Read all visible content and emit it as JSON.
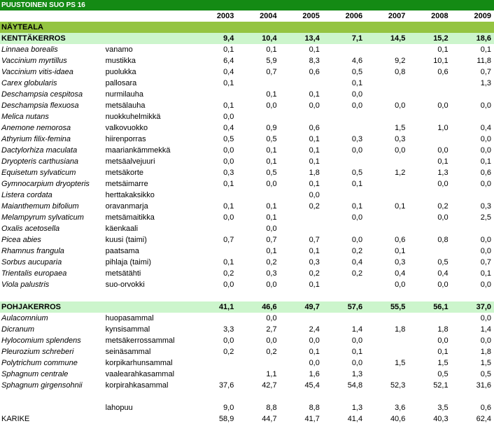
{
  "title": "PUUSTOINEN SUO PS 16",
  "years": [
    "2003",
    "2004",
    "2005",
    "2006",
    "2007",
    "2008",
    "2009"
  ],
  "area_label": "NÄYTEALA",
  "field_layer": {
    "name": "KENTTÄKERROS",
    "totals": [
      "9,4",
      "10,4",
      "13,4",
      "7,1",
      "14,5",
      "15,2",
      "18,6"
    ],
    "rows": [
      {
        "latin": "Linnaea borealis",
        "common": "vanamo",
        "values": [
          "0,1",
          "0,1",
          "0,1",
          "",
          "",
          "0,1",
          "0,1"
        ]
      },
      {
        "latin": "Vaccinium myrtillus",
        "common": "mustikka",
        "values": [
          "6,4",
          "5,9",
          "8,3",
          "4,6",
          "9,2",
          "10,1",
          "11,8"
        ]
      },
      {
        "latin": "Vaccinium vitis-idaea",
        "common": "puolukka",
        "values": [
          "0,4",
          "0,7",
          "0,6",
          "0,5",
          "0,8",
          "0,6",
          "0,7"
        ]
      },
      {
        "latin": "Carex globularis",
        "common": "pallosara",
        "values": [
          "0,1",
          "",
          "",
          "0,1",
          "",
          "",
          "1,3"
        ]
      },
      {
        "latin": "Deschampsia cespitosa",
        "common": "nurmilauha",
        "values": [
          "",
          "0,1",
          "0,1",
          "0,0",
          "",
          "",
          ""
        ]
      },
      {
        "latin": "Deschampsia flexuosa",
        "common": "metsälauha",
        "values": [
          "0,1",
          "0,0",
          "0,0",
          "0,0",
          "0,0",
          "0,0",
          "0,0"
        ]
      },
      {
        "latin": "Melica nutans",
        "common": "nuokkuhelmikkä",
        "values": [
          "0,0",
          "",
          "",
          "",
          "",
          "",
          ""
        ]
      },
      {
        "latin": "Anemone nemorosa",
        "common": "valkovuokko",
        "values": [
          "0,4",
          "0,9",
          "0,6",
          "",
          "1,5",
          "1,0",
          "0,4"
        ]
      },
      {
        "latin": "Athyrium filix-femina",
        "common": "hiirenporras",
        "values": [
          "0,5",
          "0,5",
          "0,1",
          "0,3",
          "0,3",
          "",
          "0,0"
        ]
      },
      {
        "latin": "Dactylorhiza maculata",
        "common": "maariankämmekkä",
        "values": [
          "0,0",
          "0,1",
          "0,1",
          "0,0",
          "0,0",
          "0,0",
          "0,0"
        ]
      },
      {
        "latin": "Dryopteris carthusiana",
        "common": "metsäalvejuuri",
        "values": [
          "0,0",
          "0,1",
          "0,1",
          "",
          "",
          "0,1",
          "0,1"
        ]
      },
      {
        "latin": "Equisetum sylvaticum",
        "common": "metsäkorte",
        "values": [
          "0,3",
          "0,5",
          "1,8",
          "0,5",
          "1,2",
          "1,3",
          "0,6"
        ]
      },
      {
        "latin": "Gymnocarpium dryopteris",
        "common": "metsäimarre",
        "values": [
          "0,1",
          "0,0",
          "0,1",
          "0,1",
          "",
          "0,0",
          "0,0"
        ]
      },
      {
        "latin": "Listera cordata",
        "common": "herttakaksikko",
        "values": [
          "",
          "",
          "0,0",
          "",
          "",
          "",
          ""
        ]
      },
      {
        "latin": "Maianthemum bifolium",
        "common": "oravanmarja",
        "values": [
          "0,1",
          "0,1",
          "0,2",
          "0,1",
          "0,1",
          "0,2",
          "0,3"
        ]
      },
      {
        "latin": "Melampyrum sylvaticum",
        "common": "metsämaitikka",
        "values": [
          "0,0",
          "0,1",
          "",
          "0,0",
          "",
          "0,0",
          "2,5"
        ]
      },
      {
        "latin": "Oxalis acetosella",
        "common": "käenkaali",
        "values": [
          "",
          "0,0",
          "",
          "",
          "",
          "",
          ""
        ]
      },
      {
        "latin": "Picea abies",
        "common": "kuusi (taimi)",
        "values": [
          "0,7",
          "0,7",
          "0,7",
          "0,0",
          "0,6",
          "0,8",
          "0,0"
        ]
      },
      {
        "latin": "Rhamnus frangula",
        "common": "paatsama",
        "values": [
          "",
          "0,1",
          "0,1",
          "0,2",
          "0,1",
          "",
          "0,0"
        ]
      },
      {
        "latin": "Sorbus aucuparia",
        "common": "pihlaja (taimi)",
        "values": [
          "0,1",
          "0,2",
          "0,3",
          "0,4",
          "0,3",
          "0,5",
          "0,7"
        ]
      },
      {
        "latin": "Trientalis europaea",
        "common": "metsätähti",
        "values": [
          "0,2",
          "0,3",
          "0,2",
          "0,2",
          "0,4",
          "0,4",
          "0,1"
        ]
      },
      {
        "latin": "Viola palustris",
        "common": "suo-orvokki",
        "values": [
          "0,0",
          "0,0",
          "0,1",
          "",
          "0,0",
          "0,0",
          "0,0"
        ]
      }
    ]
  },
  "ground_layer": {
    "name": "POHJAKERROS",
    "totals": [
      "41,1",
      "46,6",
      "49,7",
      "57,6",
      "55,5",
      "56,1",
      "37,0"
    ],
    "rows": [
      {
        "latin": "Aulacomnium",
        "common": "huopasammal",
        "values": [
          "",
          "0,0",
          "",
          "",
          "",
          "",
          "0,0"
        ]
      },
      {
        "latin": "Dicranum",
        "common": "kynsisammal",
        "values": [
          "3,3",
          "2,7",
          "2,4",
          "1,4",
          "1,8",
          "1,8",
          "1,4"
        ]
      },
      {
        "latin": "Hylocomium splendens",
        "common": "metsäkerrossammal",
        "values": [
          "0,0",
          "0,0",
          "0,0",
          "0,0",
          "",
          "0,0",
          "0,0"
        ]
      },
      {
        "latin": "Pleurozium schreberi",
        "common": "seinäsammal",
        "values": [
          "0,2",
          "0,2",
          "0,1",
          "0,1",
          "",
          "0,1",
          "1,8"
        ]
      },
      {
        "latin": "Polytrichum commune",
        "common": "korpikarhunsammal",
        "values": [
          "",
          "",
          "0,0",
          "0,0",
          "1,5",
          "1,5",
          "1,5"
        ]
      },
      {
        "latin": "Sphagnum centrale",
        "common": "vaalearahkasammal",
        "values": [
          "",
          "1,1",
          "1,6",
          "1,3",
          "",
          "0,5",
          "0,5"
        ]
      },
      {
        "latin": "Sphagnum girgensohnii",
        "common": "korpirahkasammal",
        "values": [
          "37,6",
          "42,7",
          "45,4",
          "54,8",
          "52,3",
          "52,1",
          "31,6"
        ]
      }
    ]
  },
  "lahopuu": {
    "latin": "",
    "common": "lahopuu",
    "values": [
      "9,0",
      "8,8",
      "8,8",
      "1,3",
      "3,6",
      "3,5",
      "0,6"
    ]
  },
  "karike": {
    "latin": "KARIKE",
    "common": "",
    "values": [
      "58,9",
      "44,7",
      "41,7",
      "41,4",
      "40,6",
      "40,3",
      "62,4"
    ]
  }
}
